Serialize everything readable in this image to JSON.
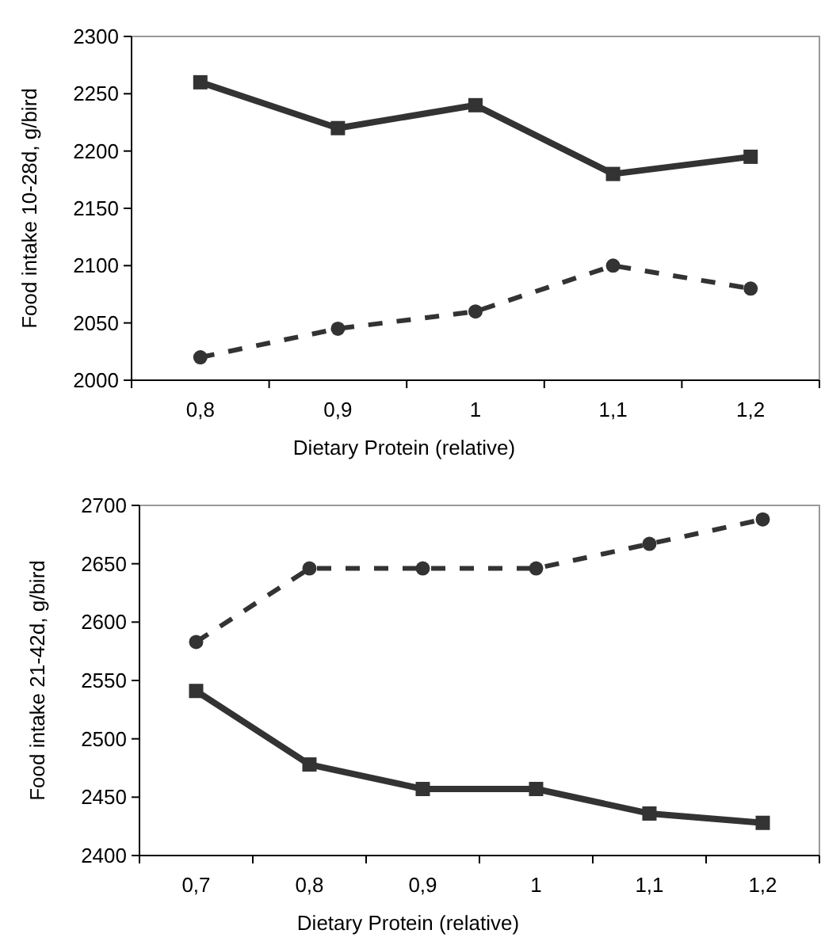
{
  "chart_data": [
    {
      "type": "line",
      "xlabel": "Dietary Protein (relative)",
      "ylabel": "Food intake 10-28d, g/bird",
      "categories": [
        "0,8",
        "0,9",
        "1",
        "1,1",
        "1,2"
      ],
      "ylim": [
        2000,
        2300
      ],
      "yticks": [
        2000,
        2050,
        2100,
        2150,
        2200,
        2250,
        2300
      ],
      "grid": false,
      "series": [
        {
          "color": "#333333",
          "marker": "square",
          "line_style": "solid",
          "values": [
            2260,
            2220,
            2240,
            2180,
            2195
          ]
        },
        {
          "color": "#333333",
          "marker": "circle",
          "line_style": "dashed",
          "values": [
            2020,
            2045,
            2060,
            2100,
            2080
          ]
        }
      ]
    },
    {
      "type": "line",
      "xlabel": "Dietary Protein (relative)",
      "ylabel": "Food intake 21-42d, g/bird",
      "categories": [
        "0,7",
        "0,8",
        "0,9",
        "1",
        "1,1",
        "1,2"
      ],
      "ylim": [
        2400,
        2700
      ],
      "yticks": [
        2400,
        2450,
        2500,
        2550,
        2600,
        2650,
        2700
      ],
      "grid": false,
      "series": [
        {
          "color": "#333333",
          "marker": "circle",
          "line_style": "dashed",
          "values": [
            2583,
            2646,
            2646,
            2646,
            2667,
            2688
          ]
        },
        {
          "color": "#333333",
          "marker": "square",
          "line_style": "solid",
          "values": [
            2541,
            2478,
            2457,
            2457,
            2436,
            2428
          ]
        }
      ]
    }
  ]
}
